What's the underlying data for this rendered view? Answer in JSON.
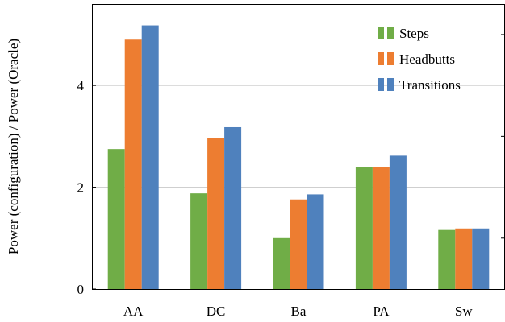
{
  "chart_data": {
    "type": "bar",
    "categories": [
      "AA",
      "DC",
      "Ba",
      "PA",
      "Sw"
    ],
    "series": [
      {
        "name": "Steps",
        "color": "#70ad47",
        "values": [
          2.75,
          1.88,
          1.0,
          2.4,
          1.16
        ]
      },
      {
        "name": "Headbutts",
        "color": "#ed7d31",
        "values": [
          4.9,
          2.97,
          1.76,
          2.4,
          1.19
        ]
      },
      {
        "name": "Transitions",
        "color": "#4f81bd",
        "values": [
          5.18,
          3.18,
          1.86,
          2.62,
          1.19
        ]
      }
    ],
    "ylabel": "Power (configuration) / Power (Oracle)",
    "xlabel": "",
    "title": "",
    "ylim": [
      0,
      5.6
    ],
    "yticks": [
      0,
      2,
      4
    ],
    "yticklabels": [
      "0",
      "2",
      "4"
    ],
    "grid": "horizontal",
    "legend_position": "top-right"
  }
}
